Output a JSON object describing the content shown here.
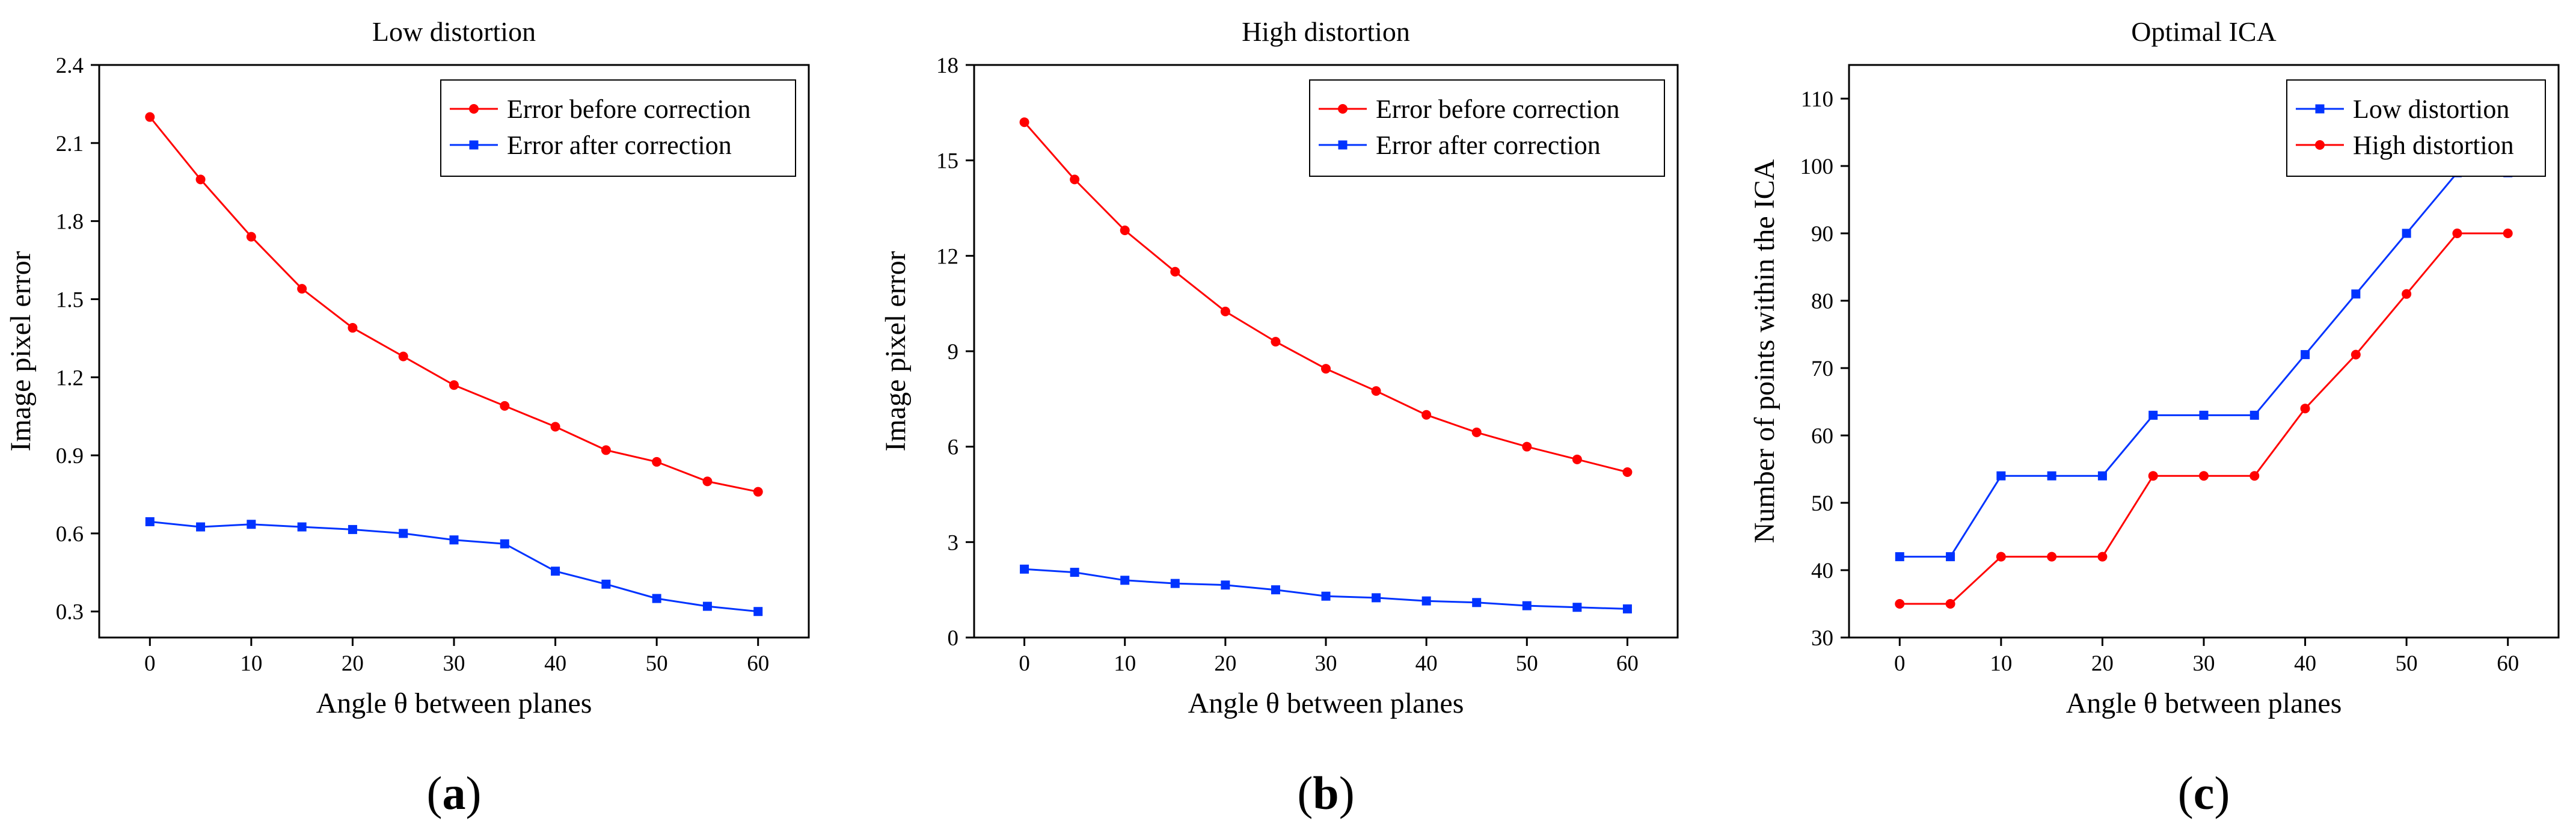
{
  "figure": {
    "panel_labels": [
      "a",
      "b",
      "c"
    ]
  },
  "colors": {
    "red": "#ff0000",
    "blue": "#0033ff",
    "axis": "#000000"
  },
  "chart_data": [
    {
      "type": "line",
      "title": "Low distortion",
      "xlabel": "Angle θ between planes",
      "ylabel": "Image pixel error",
      "xlim": [
        -5,
        65
      ],
      "ylim": [
        0.2,
        2.4
      ],
      "xticks": [
        0,
        10,
        20,
        30,
        40,
        50,
        60
      ],
      "xtick_labels": [
        "0",
        "10",
        "20",
        "30",
        "40",
        "50",
        "60"
      ],
      "yticks": [
        0.3,
        0.6,
        0.9,
        1.2,
        1.5,
        1.8,
        2.1,
        2.4
      ],
      "ytick_labels": [
        "0.3",
        "0.6",
        "0.9",
        "1.2",
        "1.5",
        "1.8",
        "2.1",
        "2.4"
      ],
      "legend_position": "top-right",
      "x": [
        0,
        5,
        10,
        15,
        20,
        25,
        30,
        35,
        40,
        45,
        50,
        55,
        60
      ],
      "series": [
        {
          "name": "Error before correction",
          "color": "#ff0000",
          "marker": "circle",
          "values": [
            2.2,
            1.96,
            1.74,
            1.54,
            1.39,
            1.28,
            1.17,
            1.09,
            1.01,
            0.92,
            0.875,
            0.8,
            0.76
          ]
        },
        {
          "name": "Error after correction",
          "color": "#0033ff",
          "marker": "square",
          "values": [
            0.645,
            0.625,
            0.635,
            0.625,
            0.615,
            0.6,
            0.575,
            0.56,
            0.455,
            0.405,
            0.35,
            0.32,
            0.3
          ]
        }
      ]
    },
    {
      "type": "line",
      "title": "High distortion",
      "xlabel": "Angle θ between planes",
      "ylabel": "Image pixel error",
      "xlim": [
        -5,
        65
      ],
      "ylim": [
        0,
        18
      ],
      "xticks": [
        0,
        10,
        20,
        30,
        40,
        50,
        60
      ],
      "xtick_labels": [
        "0",
        "10",
        "20",
        "30",
        "40",
        "50",
        "60"
      ],
      "yticks": [
        0,
        3,
        6,
        9,
        12,
        15,
        18
      ],
      "ytick_labels": [
        "0",
        "3",
        "6",
        "9",
        "12",
        "15",
        "18"
      ],
      "legend_position": "top-right",
      "x": [
        0,
        5,
        10,
        15,
        20,
        25,
        30,
        35,
        40,
        45,
        50,
        55,
        60
      ],
      "series": [
        {
          "name": "Error before correction",
          "color": "#ff0000",
          "marker": "circle",
          "values": [
            16.2,
            14.4,
            12.8,
            11.5,
            10.25,
            9.3,
            8.45,
            7.75,
            7.0,
            6.45,
            6.0,
            5.6,
            5.2
          ]
        },
        {
          "name": "Error after correction",
          "color": "#0033ff",
          "marker": "square",
          "values": [
            2.15,
            2.05,
            1.8,
            1.7,
            1.65,
            1.5,
            1.3,
            1.25,
            1.15,
            1.1,
            1.0,
            0.95,
            0.9
          ]
        }
      ]
    },
    {
      "type": "line",
      "title": "Optimal ICA",
      "xlabel": "Angle θ between planes",
      "ylabel": "Number of points within the ICA",
      "xlim": [
        -5,
        65
      ],
      "ylim": [
        30,
        115
      ],
      "xticks": [
        0,
        10,
        20,
        30,
        40,
        50,
        60
      ],
      "xtick_labels": [
        "0",
        "10",
        "20",
        "30",
        "40",
        "50",
        "60"
      ],
      "yticks": [
        30,
        40,
        50,
        60,
        70,
        80,
        90,
        100,
        110
      ],
      "ytick_labels": [
        "30",
        "40",
        "50",
        "60",
        "70",
        "80",
        "90",
        "100",
        "110"
      ],
      "legend_position": "top-right",
      "x": [
        0,
        5,
        10,
        15,
        20,
        25,
        30,
        35,
        40,
        45,
        50,
        55,
        60
      ],
      "series": [
        {
          "name": "Low distortion",
          "color": "#0033ff",
          "marker": "square",
          "values": [
            42,
            42,
            54,
            54,
            54,
            63,
            63,
            63,
            72,
            81,
            90,
            99,
            99
          ]
        },
        {
          "name": "High distortion",
          "color": "#ff0000",
          "marker": "circle",
          "values": [
            35,
            35,
            42,
            42,
            42,
            54,
            54,
            54,
            64,
            72,
            81,
            90,
            90
          ]
        }
      ]
    }
  ]
}
